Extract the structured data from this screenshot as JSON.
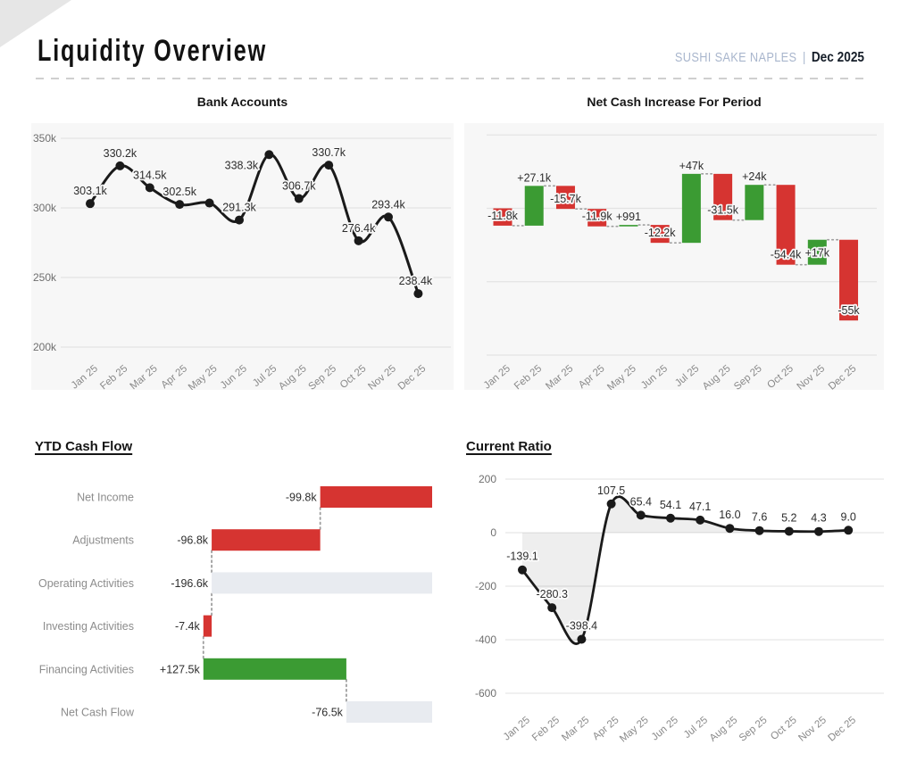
{
  "header": {
    "title": "Liquidity Overview",
    "company": "SUSHI SAKE NAPLES",
    "separator": "|",
    "period": "Dec 2025"
  },
  "colors": {
    "red": "#d63431",
    "green": "#3b9b33",
    "neutral": "#e8ebf0",
    "line": "#1a1a1a",
    "panel": "#f7f7f7",
    "grid_on_panel": "#e4e4e4",
    "grid_on_white": "#e7e7e7",
    "tick_text": "#6f6f6f",
    "month_text": "#8a8a8a",
    "category_text": "#8c8c8c",
    "label_text": "#2d2d2d",
    "connector": "#9e9e9e",
    "area_fill": "rgba(120,120,120,0.13)"
  },
  "chart_data": [
    {
      "id": "bank_accounts",
      "type": "line",
      "title": "Bank Accounts",
      "categories": [
        "Jan 25",
        "Feb 25",
        "Mar 25",
        "Apr 25",
        "May 25",
        "Jun 25",
        "Jul 25",
        "Aug 25",
        "Sep 25",
        "Oct 25",
        "Nov 25",
        "Dec 25"
      ],
      "values": [
        303.1,
        330.2,
        314.5,
        302.5,
        303.5,
        291.3,
        338.3,
        306.7,
        330.7,
        276.4,
        293.4,
        238.4
      ],
      "point_labels": [
        "303.1k",
        "330.2k",
        "314.5k",
        "302.5k",
        "",
        "291.3k",
        "338.3k",
        "306.7k",
        "330.7k",
        "276.4k",
        "293.4k",
        "238.4k"
      ],
      "yticks": [
        {
          "value": 350,
          "label": "350k"
        },
        {
          "value": 300,
          "label": "300k"
        },
        {
          "value": 250,
          "label": "250k"
        },
        {
          "value": 200,
          "label": "200k"
        }
      ],
      "ylim": [
        200,
        362
      ],
      "unit": "k",
      "grid": true,
      "legend": "none"
    },
    {
      "id": "net_cash_increase",
      "type": "waterfall",
      "title": "Net Cash Increase For Period",
      "categories": [
        "Jan 25",
        "Feb 25",
        "Mar 25",
        "Apr 25",
        "May 25",
        "Jun 25",
        "Jul 25",
        "Aug 25",
        "Sep 25",
        "Oct 25",
        "Nov 25",
        "Dec 25"
      ],
      "values": [
        -11.8,
        27.1,
        -15.7,
        -11.9,
        0.991,
        -12.2,
        47,
        -31.5,
        24,
        -54.4,
        17,
        -55
      ],
      "point_labels": [
        "-11.8k",
        "+27.1k",
        "-15.7k",
        "-11.9k",
        "+991",
        "-12.2k",
        "+47k",
        "-31.5k",
        "+24k",
        "-54.4k",
        "+17k",
        "-55k"
      ],
      "gridline_values": [
        50,
        0,
        -50,
        -100
      ],
      "ylim": [
        -100,
        58
      ],
      "unit": "k",
      "grid": true,
      "legend": "none"
    },
    {
      "id": "ytd_cash_flow",
      "type": "waterfall_horizontal",
      "title": "YTD Cash Flow",
      "categories": [
        "Net Income",
        "Adjustments",
        "Operating Activities",
        "Investing Activities",
        "Financing Activities",
        "Net Cash Flow"
      ],
      "values": [
        -99.8,
        -96.8,
        -196.6,
        -7.4,
        127.5,
        -76.5
      ],
      "kinds": [
        "delta",
        "delta",
        "total",
        "delta",
        "delta",
        "total"
      ],
      "point_labels": [
        "-99.8k",
        "-96.8k",
        "-196.6k",
        "-7.4k",
        "+127.5k",
        "-76.5k"
      ],
      "unit": "k",
      "grid": false,
      "legend": "none"
    },
    {
      "id": "current_ratio",
      "type": "area_line",
      "title": "Current Ratio",
      "categories": [
        "Jan 25",
        "Feb 25",
        "Mar 25",
        "Apr 25",
        "May 25",
        "Jun 25",
        "Jul 25",
        "Aug 25",
        "Sep 25",
        "Oct 25",
        "Nov 25",
        "Dec 25"
      ],
      "values": [
        -139.1,
        -280.3,
        -398.4,
        107.5,
        65.4,
        54.1,
        47.1,
        16.0,
        7.6,
        5.2,
        4.3,
        9.0
      ],
      "point_labels": [
        "-139.1",
        "-280.3",
        "-398.4",
        "107.5",
        "65.4",
        "54.1",
        "47.1",
        "16.0",
        "7.6",
        "5.2",
        "4.3",
        "9.0"
      ],
      "yticks": [
        {
          "value": 200,
          "label": "200"
        },
        {
          "value": 0,
          "label": "0"
        },
        {
          "value": -200,
          "label": "-200"
        },
        {
          "value": -400,
          "label": "-400"
        },
        {
          "value": -600,
          "label": "-600"
        }
      ],
      "ylim": [
        -600,
        200
      ],
      "grid": true,
      "legend": "none"
    }
  ]
}
